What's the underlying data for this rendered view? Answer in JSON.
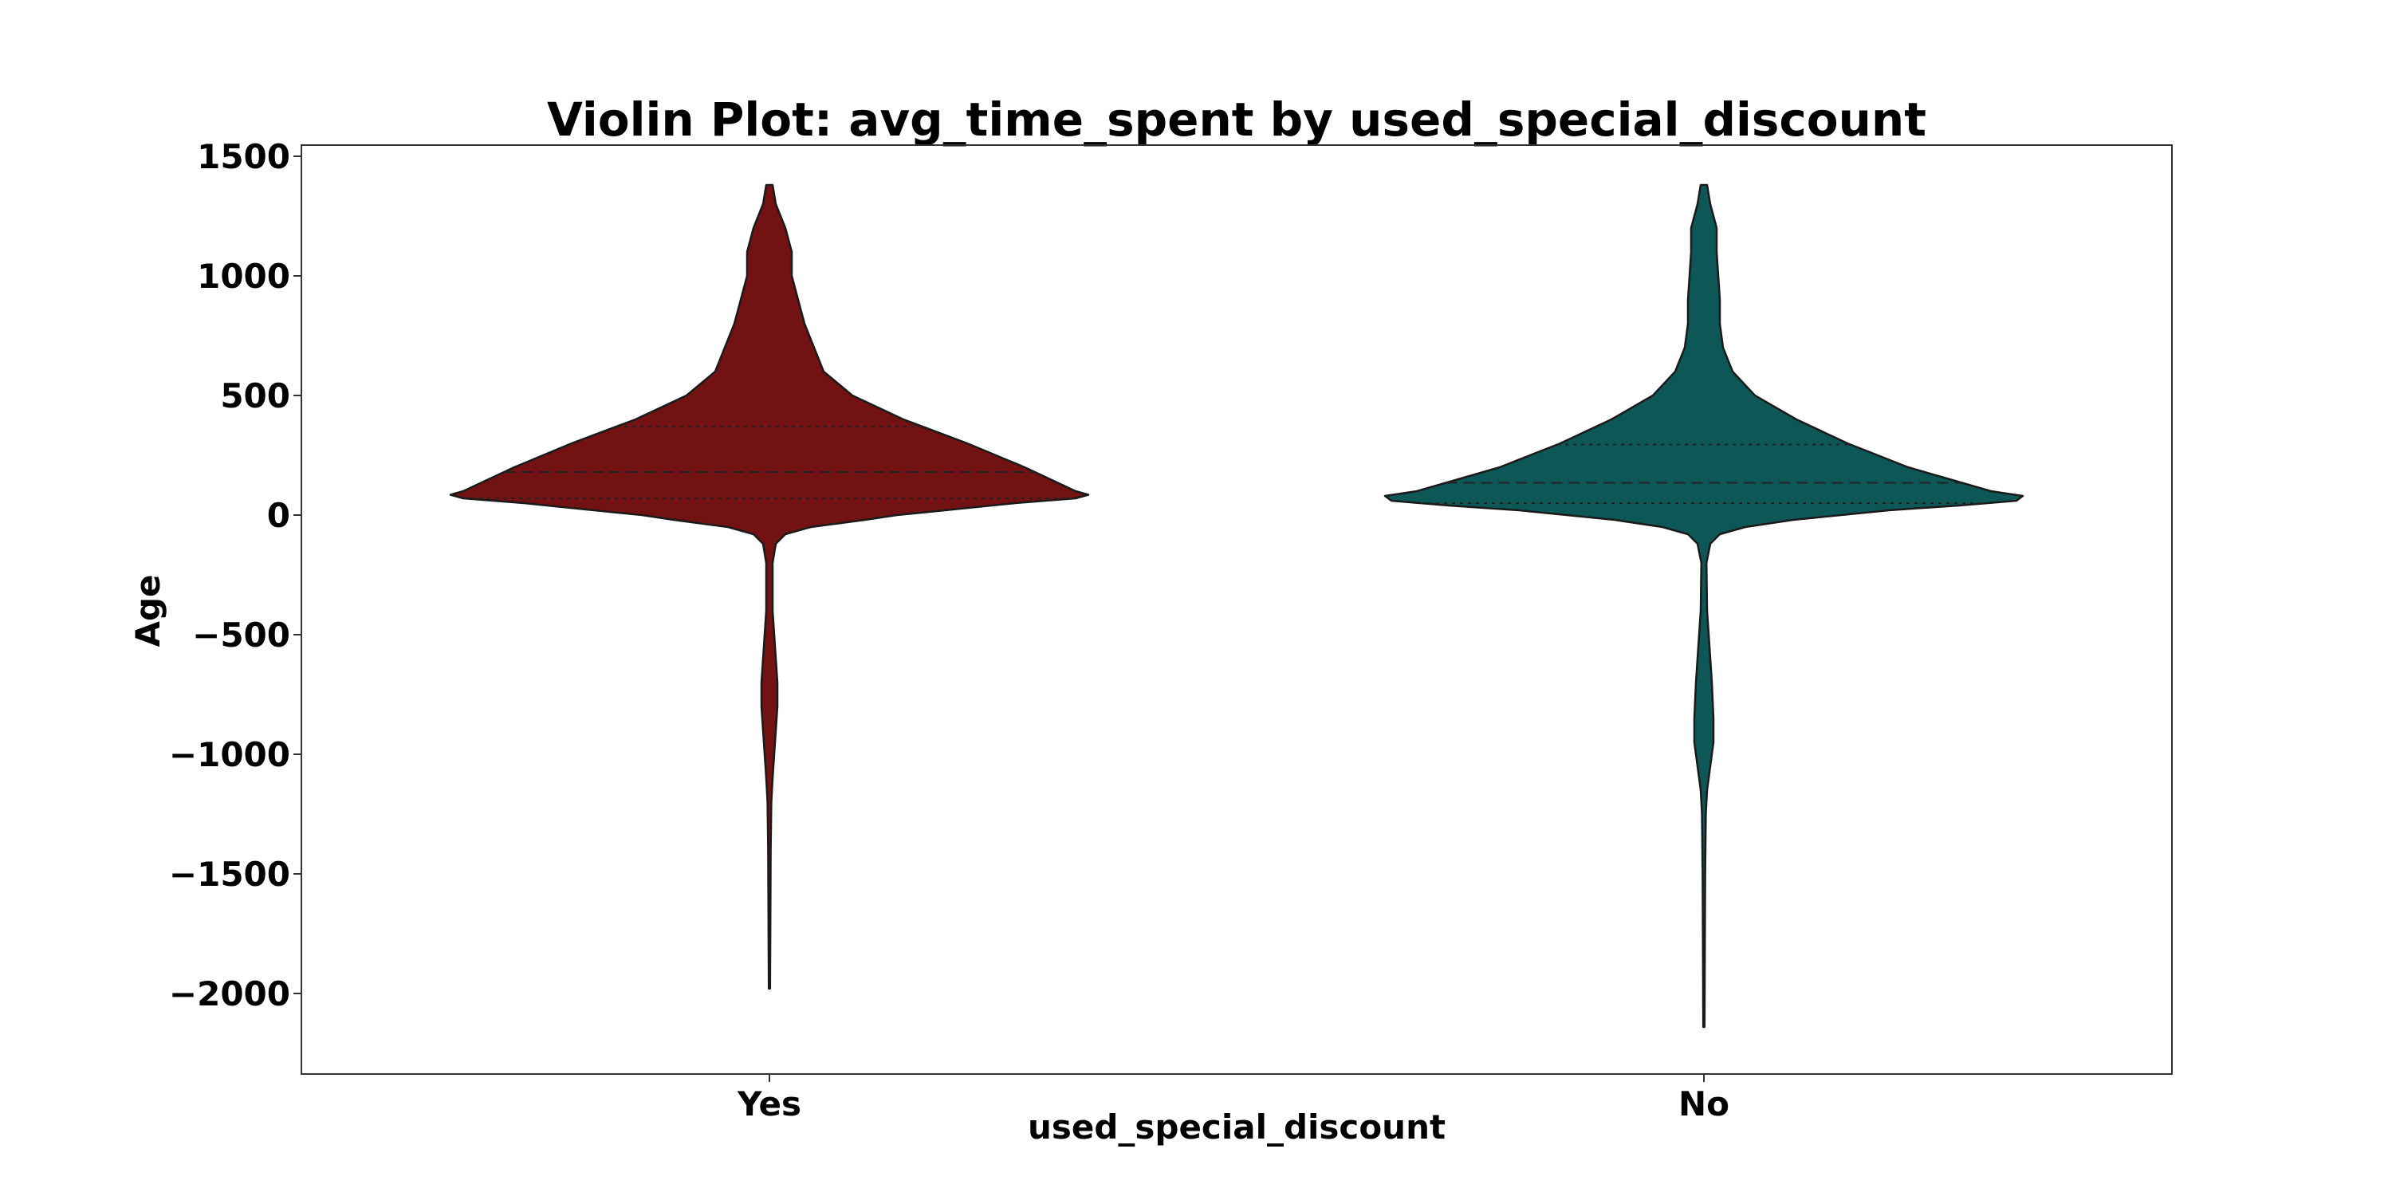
{
  "chart_data": {
    "type": "violin",
    "title": "Violin Plot: avg_time_spent by used_special_discount",
    "xlabel": "used_special_discount",
    "ylabel": "Age",
    "ylim": [
      -2300,
      1560
    ],
    "yticks": [
      1500,
      1000,
      500,
      0,
      -500,
      -1000,
      -1500,
      -2000
    ],
    "ytick_labels": [
      "1500",
      "1000",
      "500",
      "0",
      "−500",
      "−1000",
      "−1500",
      "−2000"
    ],
    "categories": [
      "Yes",
      "No"
    ],
    "grid": false,
    "legend": "none",
    "series": [
      {
        "category": "Yes",
        "color": "#721212",
        "min": -1980,
        "max": 1380,
        "quartiles": {
          "q1": 70,
          "median": 180,
          "q3": 370
        },
        "density": [
          [
            1380,
            0.01
          ],
          [
            1300,
            0.02
          ],
          [
            1200,
            0.05
          ],
          [
            1100,
            0.07
          ],
          [
            1000,
            0.07
          ],
          [
            900,
            0.09
          ],
          [
            800,
            0.11
          ],
          [
            700,
            0.14
          ],
          [
            600,
            0.17
          ],
          [
            500,
            0.26
          ],
          [
            400,
            0.42
          ],
          [
            300,
            0.62
          ],
          [
            200,
            0.8
          ],
          [
            150,
            0.88
          ],
          [
            100,
            0.96
          ],
          [
            85,
            1.0
          ],
          [
            70,
            0.96
          ],
          [
            50,
            0.77
          ],
          [
            20,
            0.55
          ],
          [
            0,
            0.4
          ],
          [
            -20,
            0.3
          ],
          [
            -50,
            0.13
          ],
          [
            -80,
            0.05
          ],
          [
            -120,
            0.02
          ],
          [
            -200,
            0.01
          ],
          [
            -400,
            0.01
          ],
          [
            -600,
            0.02
          ],
          [
            -700,
            0.025
          ],
          [
            -800,
            0.025
          ],
          [
            -900,
            0.02
          ],
          [
            -1000,
            0.015
          ],
          [
            -1100,
            0.01
          ],
          [
            -1200,
            0.006
          ],
          [
            -1400,
            0.004
          ],
          [
            -1700,
            0.003
          ],
          [
            -1980,
            0.002
          ]
        ]
      },
      {
        "category": "No",
        "color": "#0e5757",
        "min": -2140,
        "max": 1380,
        "quartiles": {
          "q1": 50,
          "median": 135,
          "q3": 295
        },
        "density": [
          [
            1380,
            0.01
          ],
          [
            1300,
            0.02
          ],
          [
            1200,
            0.04
          ],
          [
            1100,
            0.04
          ],
          [
            1000,
            0.045
          ],
          [
            900,
            0.05
          ],
          [
            800,
            0.05
          ],
          [
            700,
            0.06
          ],
          [
            600,
            0.09
          ],
          [
            500,
            0.16
          ],
          [
            400,
            0.29
          ],
          [
            300,
            0.45
          ],
          [
            200,
            0.64
          ],
          [
            150,
            0.77
          ],
          [
            100,
            0.9
          ],
          [
            80,
            1.0
          ],
          [
            60,
            0.98
          ],
          [
            40,
            0.8
          ],
          [
            20,
            0.58
          ],
          [
            0,
            0.43
          ],
          [
            -20,
            0.28
          ],
          [
            -50,
            0.13
          ],
          [
            -80,
            0.05
          ],
          [
            -120,
            0.02
          ],
          [
            -200,
            0.008
          ],
          [
            -400,
            0.01
          ],
          [
            -500,
            0.015
          ],
          [
            -600,
            0.02
          ],
          [
            -700,
            0.025
          ],
          [
            -850,
            0.03
          ],
          [
            -950,
            0.03
          ],
          [
            -1050,
            0.02
          ],
          [
            -1150,
            0.01
          ],
          [
            -1250,
            0.006
          ],
          [
            -1500,
            0.004
          ],
          [
            -1800,
            0.003
          ],
          [
            -2140,
            0.002
          ]
        ]
      }
    ]
  }
}
